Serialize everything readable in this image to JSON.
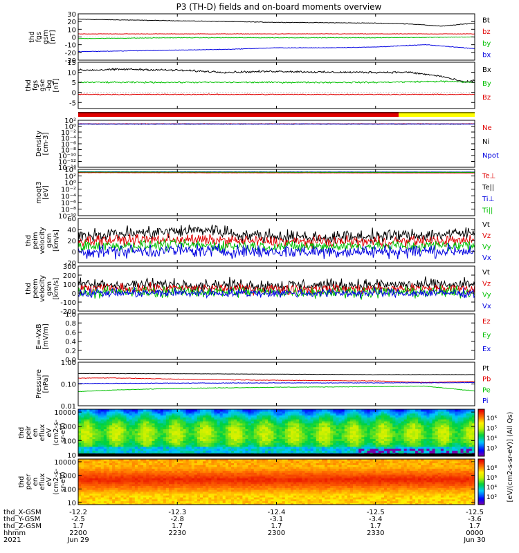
{
  "title": "P3 (TH-D) fields and on-board moments overview",
  "colors": {
    "black": "#000000",
    "red": "#e00000",
    "green": "#00c000",
    "blue": "#0000e0",
    "yellow": "#ffff00",
    "frame": "#000000"
  },
  "chart_data": [
    {
      "type": "line",
      "ylabel": [
        "thd",
        "fgs",
        "gsm",
        "[nT]"
      ],
      "ylim": [
        -30,
        30
      ],
      "yticks": [
        "30",
        "20",
        "10",
        "0",
        "-10",
        "-20",
        "-30"
      ],
      "ytick_values": [
        30,
        20,
        10,
        0,
        -10,
        -20,
        -30
      ],
      "legend": [
        {
          "name": "Bt",
          "color": "#000000"
        },
        {
          "name": "bz",
          "color": "#e00000"
        },
        {
          "name": "by",
          "color": "#00c000"
        },
        {
          "name": "bx",
          "color": "#0000e0"
        }
      ],
      "series": [
        {
          "name": "Bt",
          "color": "#000000",
          "x": [
            2200,
            2215,
            2230,
            2245,
            2300,
            2315,
            2330,
            2340,
            2350,
            2400
          ],
          "values": [
            23,
            22,
            21,
            20,
            19,
            18.5,
            18,
            17,
            14,
            18
          ],
          "noise": 0.3
        },
        {
          "name": "bz",
          "color": "#e00000",
          "x": [
            2200,
            2230,
            2300,
            2330,
            2400
          ],
          "values": [
            4,
            4,
            4,
            4,
            4
          ],
          "noise": 0.2
        },
        {
          "name": "by",
          "color": "#00c000",
          "x": [
            2200,
            2230,
            2300,
            2330,
            2400
          ],
          "values": [
            -2,
            -1,
            -1,
            -1,
            0
          ],
          "noise": 0.3
        },
        {
          "name": "bx",
          "color": "#0000e0",
          "x": [
            2200,
            2215,
            2230,
            2245,
            2300,
            2315,
            2330,
            2345,
            2400
          ],
          "values": [
            -19,
            -18,
            -17,
            -16,
            -14,
            -14,
            -13,
            -10,
            -15
          ],
          "noise": 0.3
        }
      ]
    },
    {
      "type": "line",
      "ylabel": [
        "thd",
        "fgs",
        "gse",
        "-bg",
        "[nT]"
      ],
      "ylim": [
        -8,
        15
      ],
      "yticks": [
        "15",
        "10",
        "5",
        "0",
        "-5"
      ],
      "ytick_values": [
        15,
        10,
        5,
        0,
        -5
      ],
      "legend": [
        {
          "name": "Bx",
          "color": "#000000"
        },
        {
          "name": "By",
          "color": "#00c000"
        },
        {
          "name": "Bz",
          "color": "#e00000"
        }
      ],
      "series": [
        {
          "name": "Bx",
          "color": "#000000",
          "x": [
            2200,
            2215,
            2230,
            2245,
            2300,
            2315,
            2330,
            2340,
            2350,
            2357,
            2400
          ],
          "values": [
            11,
            11.5,
            11,
            10,
            10.5,
            10,
            10,
            10,
            8,
            5,
            6
          ],
          "noise": 0.4
        },
        {
          "name": "By",
          "color": "#00c000",
          "x": [
            2200,
            2230,
            2300,
            2330,
            2350,
            2400
          ],
          "values": [
            5,
            5,
            5,
            5,
            5.5,
            5
          ],
          "noise": 0.3
        },
        {
          "name": "Bz",
          "color": "#e00000",
          "x": [
            2200,
            2230,
            2300,
            2330,
            2400
          ],
          "values": [
            -1,
            -1,
            -1,
            -1,
            -1
          ],
          "noise": 0.2
        }
      ]
    },
    {
      "type": "bar",
      "segments": [
        {
          "from": 2200,
          "to": 2337,
          "color": "#e00000"
        },
        {
          "from": 2337,
          "to": 2400,
          "color": "#ffff00"
        }
      ]
    },
    {
      "type": "line",
      "ylabel": [
        "Density",
        "[cm-3]"
      ],
      "ylim": [
        -14,
        2
      ],
      "log": true,
      "yticks": [
        "10²",
        "10⁰",
        "10⁻²",
        "10⁻⁴",
        "10⁻⁶",
        "10⁻⁸",
        "10⁻¹⁰",
        "10⁻¹²",
        "10⁻¹⁴"
      ],
      "ytick_values": [
        2,
        0,
        -2,
        -4,
        -6,
        -8,
        -10,
        -12,
        -14
      ],
      "legend": [
        {
          "name": "Ne",
          "color": "#e00000"
        },
        {
          "name": "Ni",
          "color": "#000000"
        },
        {
          "name": "Npot",
          "color": "#0000e0"
        }
      ],
      "series": [
        {
          "name": "Ne",
          "color": "#e00000",
          "x": [
            2200,
            2400
          ],
          "values": [
            0.8,
            0.8
          ],
          "noise": 0.05
        },
        {
          "name": "Ni",
          "color": "#000000",
          "x": [
            2200,
            2400
          ],
          "values": [
            0.7,
            0.7
          ],
          "noise": 0.05
        },
        {
          "name": "Npot",
          "color": "#0000e0",
          "x": [
            2200,
            2400
          ],
          "values": [
            0.75,
            0.75
          ],
          "noise": 0.05
        }
      ]
    },
    {
      "type": "line",
      "ylabel": [
        "moqt3",
        "[eV]"
      ],
      "ylim": [
        -10,
        4
      ],
      "log": true,
      "yticks": [
        "10⁴",
        "10²",
        "10⁰",
        "10⁻²",
        "10⁻⁴",
        "10⁻⁶",
        "10⁻⁸",
        "10⁻¹⁰"
      ],
      "ytick_values": [
        4,
        2,
        0,
        -2,
        -4,
        -6,
        -8,
        -10
      ],
      "legend": [
        {
          "name": "Te⊥",
          "color": "#e00000"
        },
        {
          "name": "Te||",
          "color": "#000000"
        },
        {
          "name": "Ti⊥",
          "color": "#0000e0"
        },
        {
          "name": "Ti||",
          "color": "#00c000"
        }
      ],
      "series": [
        {
          "name": "Te||",
          "color": "#000000",
          "x": [
            2200,
            2400
          ],
          "values": [
            3.1,
            3.0
          ],
          "noise": 0.03
        },
        {
          "name": "Te⊥",
          "color": "#e00000",
          "x": [
            2200,
            2400
          ],
          "values": [
            3.0,
            2.9
          ],
          "noise": 0.03
        },
        {
          "name": "Ti⊥",
          "color": "#0000e0",
          "x": [
            2200,
            2400
          ],
          "values": [
            3.3,
            3.2
          ],
          "noise": 0.03
        },
        {
          "name": "Ti||",
          "color": "#00c000",
          "x": [
            2200,
            2400
          ],
          "values": [
            3.2,
            3.1
          ],
          "noise": 0.03
        }
      ]
    },
    {
      "type": "line",
      "ylabel": [
        "thd",
        "peim",
        "velocity",
        "gsm",
        "[km/s]"
      ],
      "ylim": [
        -20,
        60
      ],
      "yticks": [
        "60",
        "40",
        "20",
        "0",
        "-20"
      ],
      "ytick_values": [
        60,
        40,
        20,
        0,
        -20
      ],
      "legend": [
        {
          "name": "Vt",
          "color": "#000000"
        },
        {
          "name": "Vz",
          "color": "#e00000"
        },
        {
          "name": "Vy",
          "color": "#00c000"
        },
        {
          "name": "Vx",
          "color": "#0000e0"
        }
      ],
      "series": [
        {
          "name": "Vt",
          "color": "#000000",
          "x": [
            2200,
            2220,
            2240,
            2250,
            2300,
            2315,
            2330,
            2345,
            2400
          ],
          "values": [
            30,
            34,
            40,
            30,
            28,
            25,
            28,
            30,
            33
          ],
          "noise": 10
        },
        {
          "name": "Vz",
          "color": "#e00000",
          "x": [
            2200,
            2230,
            2300,
            2330,
            2400
          ],
          "values": [
            20,
            22,
            18,
            18,
            20
          ],
          "noise": 8
        },
        {
          "name": "Vy",
          "color": "#00c000",
          "x": [
            2200,
            2230,
            2300,
            2330,
            2400
          ],
          "values": [
            10,
            12,
            9,
            10,
            11
          ],
          "noise": 8
        },
        {
          "name": "Vx",
          "color": "#0000e0",
          "x": [
            2200,
            2230,
            2300,
            2330,
            2400
          ],
          "values": [
            0,
            2,
            0,
            0,
            2
          ],
          "noise": 10
        }
      ]
    },
    {
      "type": "line",
      "ylabel": [
        "thd",
        "peem",
        "velocity",
        "gsm",
        "[km/s]"
      ],
      "ylim": [
        -200,
        300
      ],
      "yticks": [
        "300",
        "200",
        "100",
        "0",
        "-100",
        "-200"
      ],
      "ytick_values": [
        300,
        200,
        100,
        0,
        -100,
        -200
      ],
      "legend": [
        {
          "name": "Vt",
          "color": "#000000"
        },
        {
          "name": "Vz",
          "color": "#e00000"
        },
        {
          "name": "Vy",
          "color": "#00c000"
        },
        {
          "name": "Vx",
          "color": "#0000e0"
        }
      ],
      "series": [
        {
          "name": "Vt",
          "color": "#000000",
          "x": [
            2200,
            2230,
            2300,
            2330,
            2400
          ],
          "values": [
            90,
            95,
            85,
            90,
            92
          ],
          "noise": 55
        },
        {
          "name": "Vz",
          "color": "#e00000",
          "x": [
            2200,
            2230,
            2300,
            2330,
            2400
          ],
          "values": [
            50,
            50,
            45,
            45,
            50
          ],
          "noise": 45
        },
        {
          "name": "Vy",
          "color": "#00c000",
          "x": [
            2200,
            2230,
            2300,
            2330,
            2400
          ],
          "values": [
            10,
            15,
            10,
            10,
            10
          ],
          "noise": 50
        },
        {
          "name": "Vx",
          "color": "#0000e0",
          "x": [
            2200,
            2230,
            2300,
            2330,
            2400
          ],
          "values": [
            0,
            0,
            0,
            0,
            0
          ],
          "noise": 40
        }
      ]
    },
    {
      "type": "line",
      "ylabel": [
        "E=-VxB",
        "[mV/m]"
      ],
      "ylim": [
        0,
        1
      ],
      "yticks": [
        "1.0",
        "0.8",
        "0.6",
        "0.4",
        "0.2",
        "0.0"
      ],
      "ytick_values": [
        1.0,
        0.8,
        0.6,
        0.4,
        0.2,
        0.0
      ],
      "legend": [
        {
          "name": "Ez",
          "color": "#e00000"
        },
        {
          "name": "Ey",
          "color": "#00c000"
        },
        {
          "name": "Ex",
          "color": "#0000e0"
        }
      ],
      "series": []
    },
    {
      "type": "line",
      "ylabel": [
        "Pressure",
        "[nPa]"
      ],
      "ylim": [
        -2,
        0
      ],
      "log": true,
      "yticks": [
        "1.00",
        "0.10",
        "0.01"
      ],
      "ytick_values": [
        0,
        -1,
        -2
      ],
      "legend": [
        {
          "name": "Pt",
          "color": "#000000"
        },
        {
          "name": "Pb",
          "color": "#e00000"
        },
        {
          "name": "Pe",
          "color": "#00c000"
        },
        {
          "name": "Pi",
          "color": "#0000e0"
        }
      ],
      "series": [
        {
          "name": "Pt",
          "color": "#000000",
          "x": [
            2200,
            2230,
            2300,
            2330,
            2400
          ],
          "values": [
            -0.52,
            -0.53,
            -0.55,
            -0.57,
            -0.57
          ],
          "noise": 0.005
        },
        {
          "name": "Pb",
          "color": "#e00000",
          "x": [
            2200,
            2210,
            2230,
            2300,
            2330,
            2345,
            2400
          ],
          "values": [
            -0.73,
            -0.72,
            -0.78,
            -0.83,
            -0.86,
            -0.93,
            -0.88
          ],
          "noise": 0.01
        },
        {
          "name": "Pi",
          "color": "#0000e0",
          "x": [
            2200,
            2230,
            2300,
            2330,
            2400
          ],
          "values": [
            -0.98,
            -0.96,
            -0.95,
            -0.95,
            -0.94
          ],
          "noise": 0.01
        },
        {
          "name": "Pe",
          "color": "#00c000",
          "x": [
            2200,
            2210,
            2230,
            2300,
            2330,
            2345,
            2400
          ],
          "values": [
            -1.35,
            -1.28,
            -1.2,
            -1.15,
            -1.12,
            -1.1,
            -1.32
          ],
          "noise": 0.01
        }
      ]
    },
    {
      "type": "heatmap",
      "ylabel": [
        "thd",
        "peir",
        "en",
        "eflux",
        "eV",
        "(cm2-s-",
        "sr-eV)"
      ],
      "ylim": [
        0.9,
        4.2
      ],
      "log": true,
      "yticks": [
        "10000",
        "1000",
        "100",
        "10"
      ],
      "ytick_values": [
        4,
        3,
        2,
        1
      ]
    },
    {
      "type": "heatmap",
      "ylabel": [
        "thd",
        "peer",
        "en",
        "eflux",
        "eV",
        "(cm2-s-",
        "sr-eV)"
      ],
      "ylim": [
        0.85,
        4.2
      ],
      "log": true,
      "yticks": [
        "10000",
        "1000",
        "100",
        "10"
      ],
      "ytick_values": [
        4,
        3,
        2,
        1
      ]
    }
  ],
  "colorbar": {
    "label": "[eV/(cm2-s-sr-eV)] (All Qs)",
    "ticks_top": [
      "10⁶",
      "10⁵",
      "10⁴",
      "10³"
    ],
    "ticks_bottom": [
      "10⁸",
      "10⁶",
      "10⁴",
      "10²"
    ]
  },
  "xaxis": {
    "x": [
      2200,
      2230,
      2300,
      2330,
      2400
    ],
    "labels": [
      "thd_X-GSM",
      "thd_Y-GSM",
      "thd_Z-GSM",
      "hhmm",
      "2021"
    ],
    "rows": [
      [
        "-12.2",
        "-12.3",
        "-12.4",
        "-12.5",
        "-12.5"
      ],
      [
        "-2.5",
        "-2.8",
        "-3.1",
        "-3.4",
        "-3.6"
      ],
      [
        "1.7",
        "1.7",
        "1.7",
        "1.7",
        "1.7"
      ],
      [
        "2200",
        "2230",
        "2300",
        "2330",
        "0000"
      ],
      [
        "Jun 29",
        "",
        "",
        "",
        "Jun 30"
      ]
    ]
  }
}
